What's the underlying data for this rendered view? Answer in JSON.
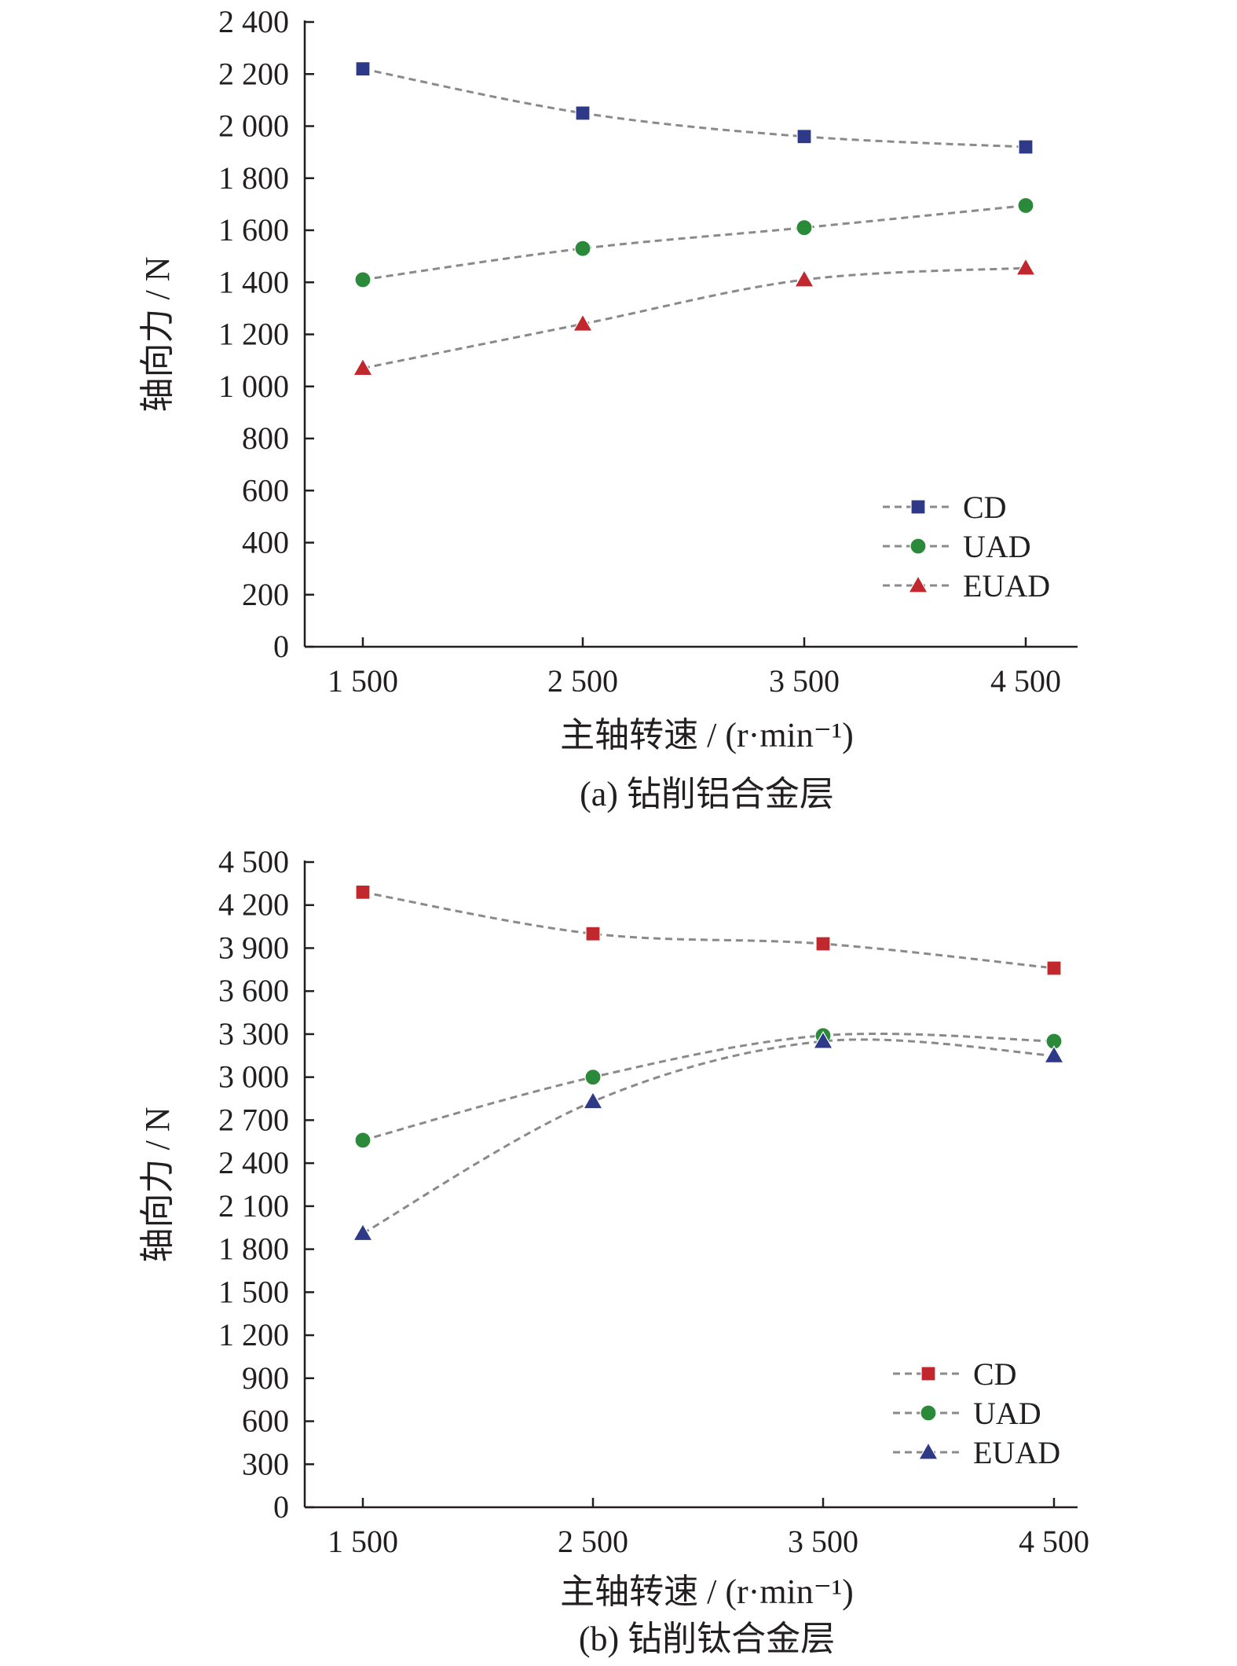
{
  "chart_data": [
    {
      "type": "line",
      "caption": "(a) 钻削铝合金层",
      "xlabel": "主轴转速 / (r·min⁻¹)",
      "ylabel": "轴向力 / N",
      "categories": [
        "1 500",
        "2 500",
        "3 500",
        "4 500"
      ],
      "x": [
        1500,
        2500,
        3500,
        4500
      ],
      "ylim": [
        0,
        2400
      ],
      "yticks": [
        0,
        200,
        400,
        600,
        800,
        1000,
        1200,
        1400,
        1600,
        1800,
        2000,
        2200,
        2400
      ],
      "ytick_labels": [
        "0",
        "200",
        "400",
        "600",
        "800",
        "1 000",
        "1 200",
        "1 400",
        "1 600",
        "1 800",
        "2 000",
        "2 200",
        "2 400"
      ],
      "grid": false,
      "legend_position": "bottom-right",
      "series": [
        {
          "name": "CD",
          "marker": "square",
          "color": "#2e3a87",
          "values": [
            2220,
            2050,
            1960,
            1920
          ]
        },
        {
          "name": "UAD",
          "marker": "circle",
          "color": "#2a8a3a",
          "values": [
            1410,
            1530,
            1610,
            1695
          ]
        },
        {
          "name": "EUAD",
          "marker": "triangle",
          "color": "#c0282e",
          "values": [
            1070,
            1240,
            1410,
            1455
          ]
        }
      ]
    },
    {
      "type": "line",
      "caption": "(b) 钻削钛合金层",
      "xlabel": "主轴转速 / (r·min⁻¹)",
      "ylabel": "轴向力 / N",
      "categories": [
        "1 500",
        "2 500",
        "3 500",
        "4 500"
      ],
      "x": [
        1500,
        2500,
        3500,
        4500
      ],
      "ylim": [
        0,
        4500
      ],
      "yticks": [
        0,
        300,
        600,
        900,
        1200,
        1500,
        1800,
        2100,
        2400,
        2700,
        3000,
        3300,
        3600,
        3900,
        4200,
        4500
      ],
      "ytick_labels": [
        "0",
        "300",
        "600",
        "900",
        "1 200",
        "1 500",
        "1 800",
        "2 100",
        "2 400",
        "2 700",
        "3 000",
        "3 300",
        "3 600",
        "3 900",
        "4 200",
        "4 500"
      ],
      "grid": false,
      "legend_position": "bottom-right",
      "series": [
        {
          "name": "CD",
          "marker": "square",
          "color": "#c0282e",
          "values": [
            4290,
            4000,
            3930,
            3760
          ]
        },
        {
          "name": "UAD",
          "marker": "circle",
          "color": "#2a8a3a",
          "values": [
            2560,
            3000,
            3290,
            3250
          ]
        },
        {
          "name": "EUAD",
          "marker": "triangle",
          "color": "#2e3a87",
          "values": [
            1910,
            2830,
            3250,
            3150
          ]
        }
      ]
    }
  ]
}
